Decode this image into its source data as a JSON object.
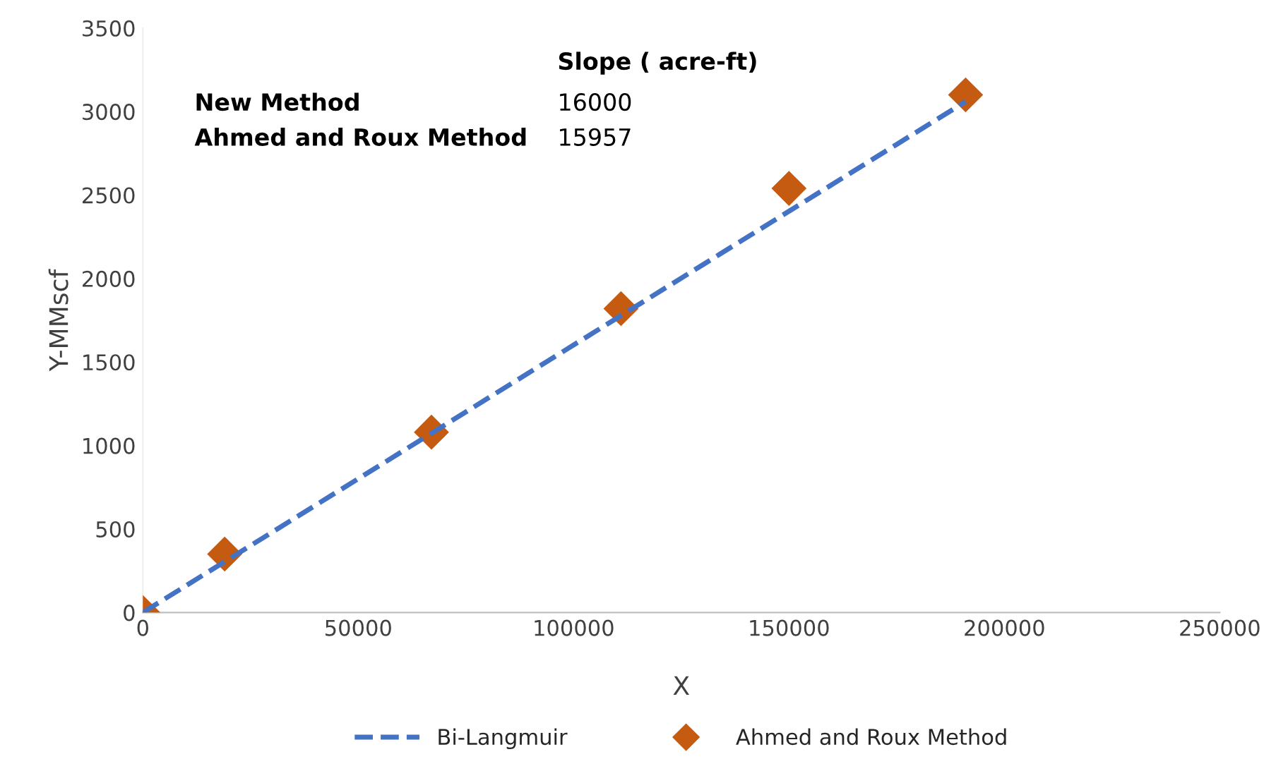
{
  "chart_data": {
    "type": "scatter",
    "xlabel": "X",
    "ylabel": "Y-MMscf",
    "xlim": [
      0,
      250000
    ],
    "xticks": [
      0,
      50000,
      100000,
      150000,
      200000,
      250000
    ],
    "ylim": [
      0,
      3500
    ],
    "yticks": [
      0,
      500,
      1000,
      1500,
      2000,
      2500,
      3000,
      3500
    ],
    "grid": false,
    "legend": "bottom",
    "series": [
      {
        "name": "Bi-Langmuir",
        "type": "line",
        "line_style": "dashed",
        "marker": "none",
        "color": "#4472c4",
        "x": [
          0,
          191000
        ],
        "values": [
          0,
          3060
        ]
      },
      {
        "name": "Ahmed and Roux Method",
        "marker": "diamond",
        "color": "#c55a11",
        "x": [
          0,
          19000,
          67000,
          111000,
          150000,
          191000
        ],
        "values": [
          0,
          350,
          1080,
          1820,
          2540,
          3100
        ]
      }
    ],
    "annotations": [
      "Slope ( acre-ft)",
      "New Method",
      "16000",
      "Ahmed and Roux Method",
      "15957"
    ]
  }
}
